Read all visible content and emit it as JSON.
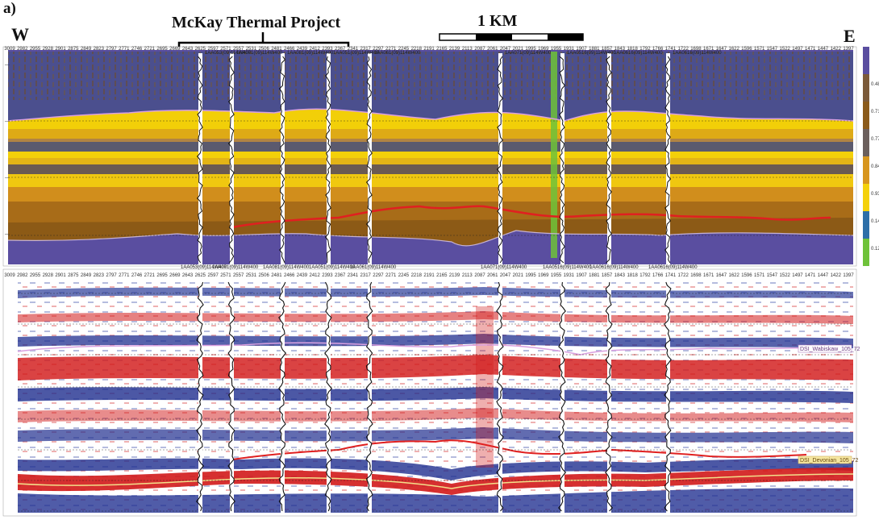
{
  "figure": {
    "panel_label": "a)",
    "west_label": "W",
    "east_label": "E",
    "project_label": "McKay Thermal Project",
    "scale_label": "1 KM"
  },
  "horizons": {
    "upper_label": "DSI_Wabiskaw_105_72",
    "lower_label": "DSI_Devonian_105_72"
  },
  "colors": {
    "purple": "#5a4ea0",
    "slate": "#4a4f8f",
    "brown": "#8a5a1a",
    "orange": "#d7961e",
    "yellow": "#f4d10a",
    "green": "#6fc23a",
    "red_horizon": "#e02020",
    "pink_horizon": "#d9a0e0",
    "seis_red": "#d21a1a",
    "seis_blue": "#1f2e8f"
  },
  "colorbar_values": [
    "",
    "0.48",
    "0.71",
    "0.77",
    "0.84",
    "0.93",
    "0.14",
    "0.12"
  ],
  "cdp_labels": [
    "3009",
    "2982",
    "2955",
    "2928",
    "2901",
    "2875",
    "2849",
    "2823",
    "2797",
    "2771",
    "2746",
    "2721",
    "2695",
    "2669",
    "2643",
    "2625",
    "2597",
    "2571",
    "2557",
    "2531",
    "2506",
    "2481",
    "2466",
    "2439",
    "2412",
    "2393",
    "2367",
    "2341",
    "2317",
    "2297",
    "2271",
    "2245",
    "2218",
    "2191",
    "2165",
    "2139",
    "2113",
    "2087",
    "2061",
    "2047",
    "2021",
    "1995",
    "1969",
    "1955",
    "1931",
    "1907",
    "1881",
    "1857",
    "1843",
    "1818",
    "1792",
    "1766",
    "1741",
    "1722",
    "1698",
    "1671",
    "1647",
    "1622",
    "1596",
    "1571",
    "1547",
    "1522",
    "1497",
    "1471",
    "1447",
    "1422",
    "1397"
  ],
  "well_labels": [
    "1AA053(09)114W400",
    "1AA071(09)114W400",
    "1AA081(09)114W400",
    "1AA051(09)114W400",
    "1AA061(09)114W400",
    "1AA071(09)114W400",
    "1AA0516(09)114W400",
    "1AA0616(09)114W400",
    "1AA0616(09)114W400"
  ]
}
